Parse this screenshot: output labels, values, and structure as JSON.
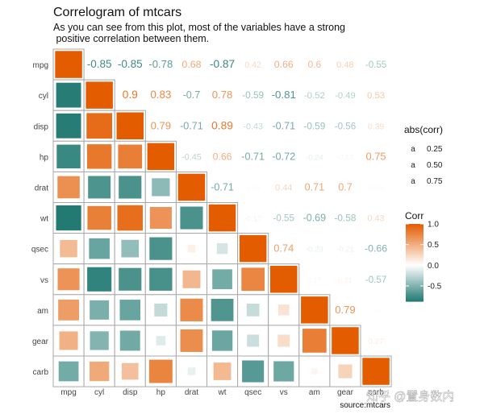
{
  "title": "Correlogram of mtcars",
  "subtitle_lines": [
    "As you can see from this plot, most of the variables have a strong",
    " positive correlation between them."
  ],
  "caption": "source:mtcars",
  "watermark": "知乎 @置身数内",
  "colors": {
    "low": "#01665e",
    "mid": "#ffffff",
    "high": "#e35c00",
    "grid": "#a8a8a8"
  },
  "chart_data": {
    "type": "heatmap",
    "variables": [
      "mpg",
      "cyl",
      "disp",
      "hp",
      "drat",
      "wt",
      "qsec",
      "vs",
      "am",
      "gear",
      "carb"
    ],
    "correlation": [
      [
        1,
        -0.85,
        -0.85,
        -0.78,
        0.68,
        -0.87,
        0.42,
        0.66,
        0.6,
        0.48,
        -0.55
      ],
      [
        -0.85,
        1,
        0.9,
        0.83,
        -0.7,
        0.78,
        -0.59,
        -0.81,
        -0.52,
        -0.49,
        0.53
      ],
      [
        -0.85,
        0.9,
        1,
        0.79,
        -0.71,
        0.89,
        -0.43,
        -0.71,
        -0.59,
        -0.56,
        0.39
      ],
      [
        -0.78,
        0.83,
        0.79,
        1,
        -0.45,
        0.66,
        -0.71,
        -0.72,
        -0.24,
        -0.13,
        0.75
      ],
      [
        0.68,
        -0.7,
        -0.71,
        -0.45,
        1,
        -0.71,
        0.09,
        0.44,
        0.71,
        0.7,
        -0.09
      ],
      [
        -0.87,
        0.78,
        0.89,
        0.66,
        -0.71,
        1,
        -0.17,
        -0.55,
        -0.69,
        -0.58,
        0.43
      ],
      [
        0.42,
        -0.59,
        -0.43,
        -0.71,
        0.09,
        -0.17,
        1,
        0.74,
        -0.23,
        -0.21,
        -0.66
      ],
      [
        0.66,
        -0.81,
        -0.71,
        -0.72,
        0.44,
        -0.55,
        0.74,
        1,
        0.17,
        0.21,
        -0.57
      ],
      [
        0.6,
        -0.52,
        -0.59,
        -0.24,
        0.71,
        -0.69,
        -0.23,
        0.17,
        1,
        0.79,
        0.06
      ],
      [
        0.48,
        -0.49,
        -0.56,
        -0.13,
        0.7,
        -0.58,
        -0.21,
        0.21,
        0.79,
        1,
        0.27
      ],
      [
        -0.55,
        0.53,
        0.39,
        0.75,
        -0.09,
        0.43,
        -0.66,
        -0.57,
        0.06,
        0.27,
        1
      ]
    ],
    "lower_triangle": "squares",
    "upper_triangle": "labels",
    "legend_size": {
      "title": "abs(corr)",
      "glyph": "a",
      "entries": [
        "0.25",
        "0.50",
        "0.75"
      ],
      "values": [
        0.25,
        0.5,
        0.75
      ]
    },
    "legend_color": {
      "title": "Corr",
      "tick_labels": [
        "1.0",
        "0.5",
        "0.0",
        "-0.5"
      ],
      "tick_values": [
        1.0,
        0.5,
        0.0,
        -0.5
      ],
      "range": [
        -0.87,
        1.0
      ]
    },
    "legend_placement": "right"
  }
}
